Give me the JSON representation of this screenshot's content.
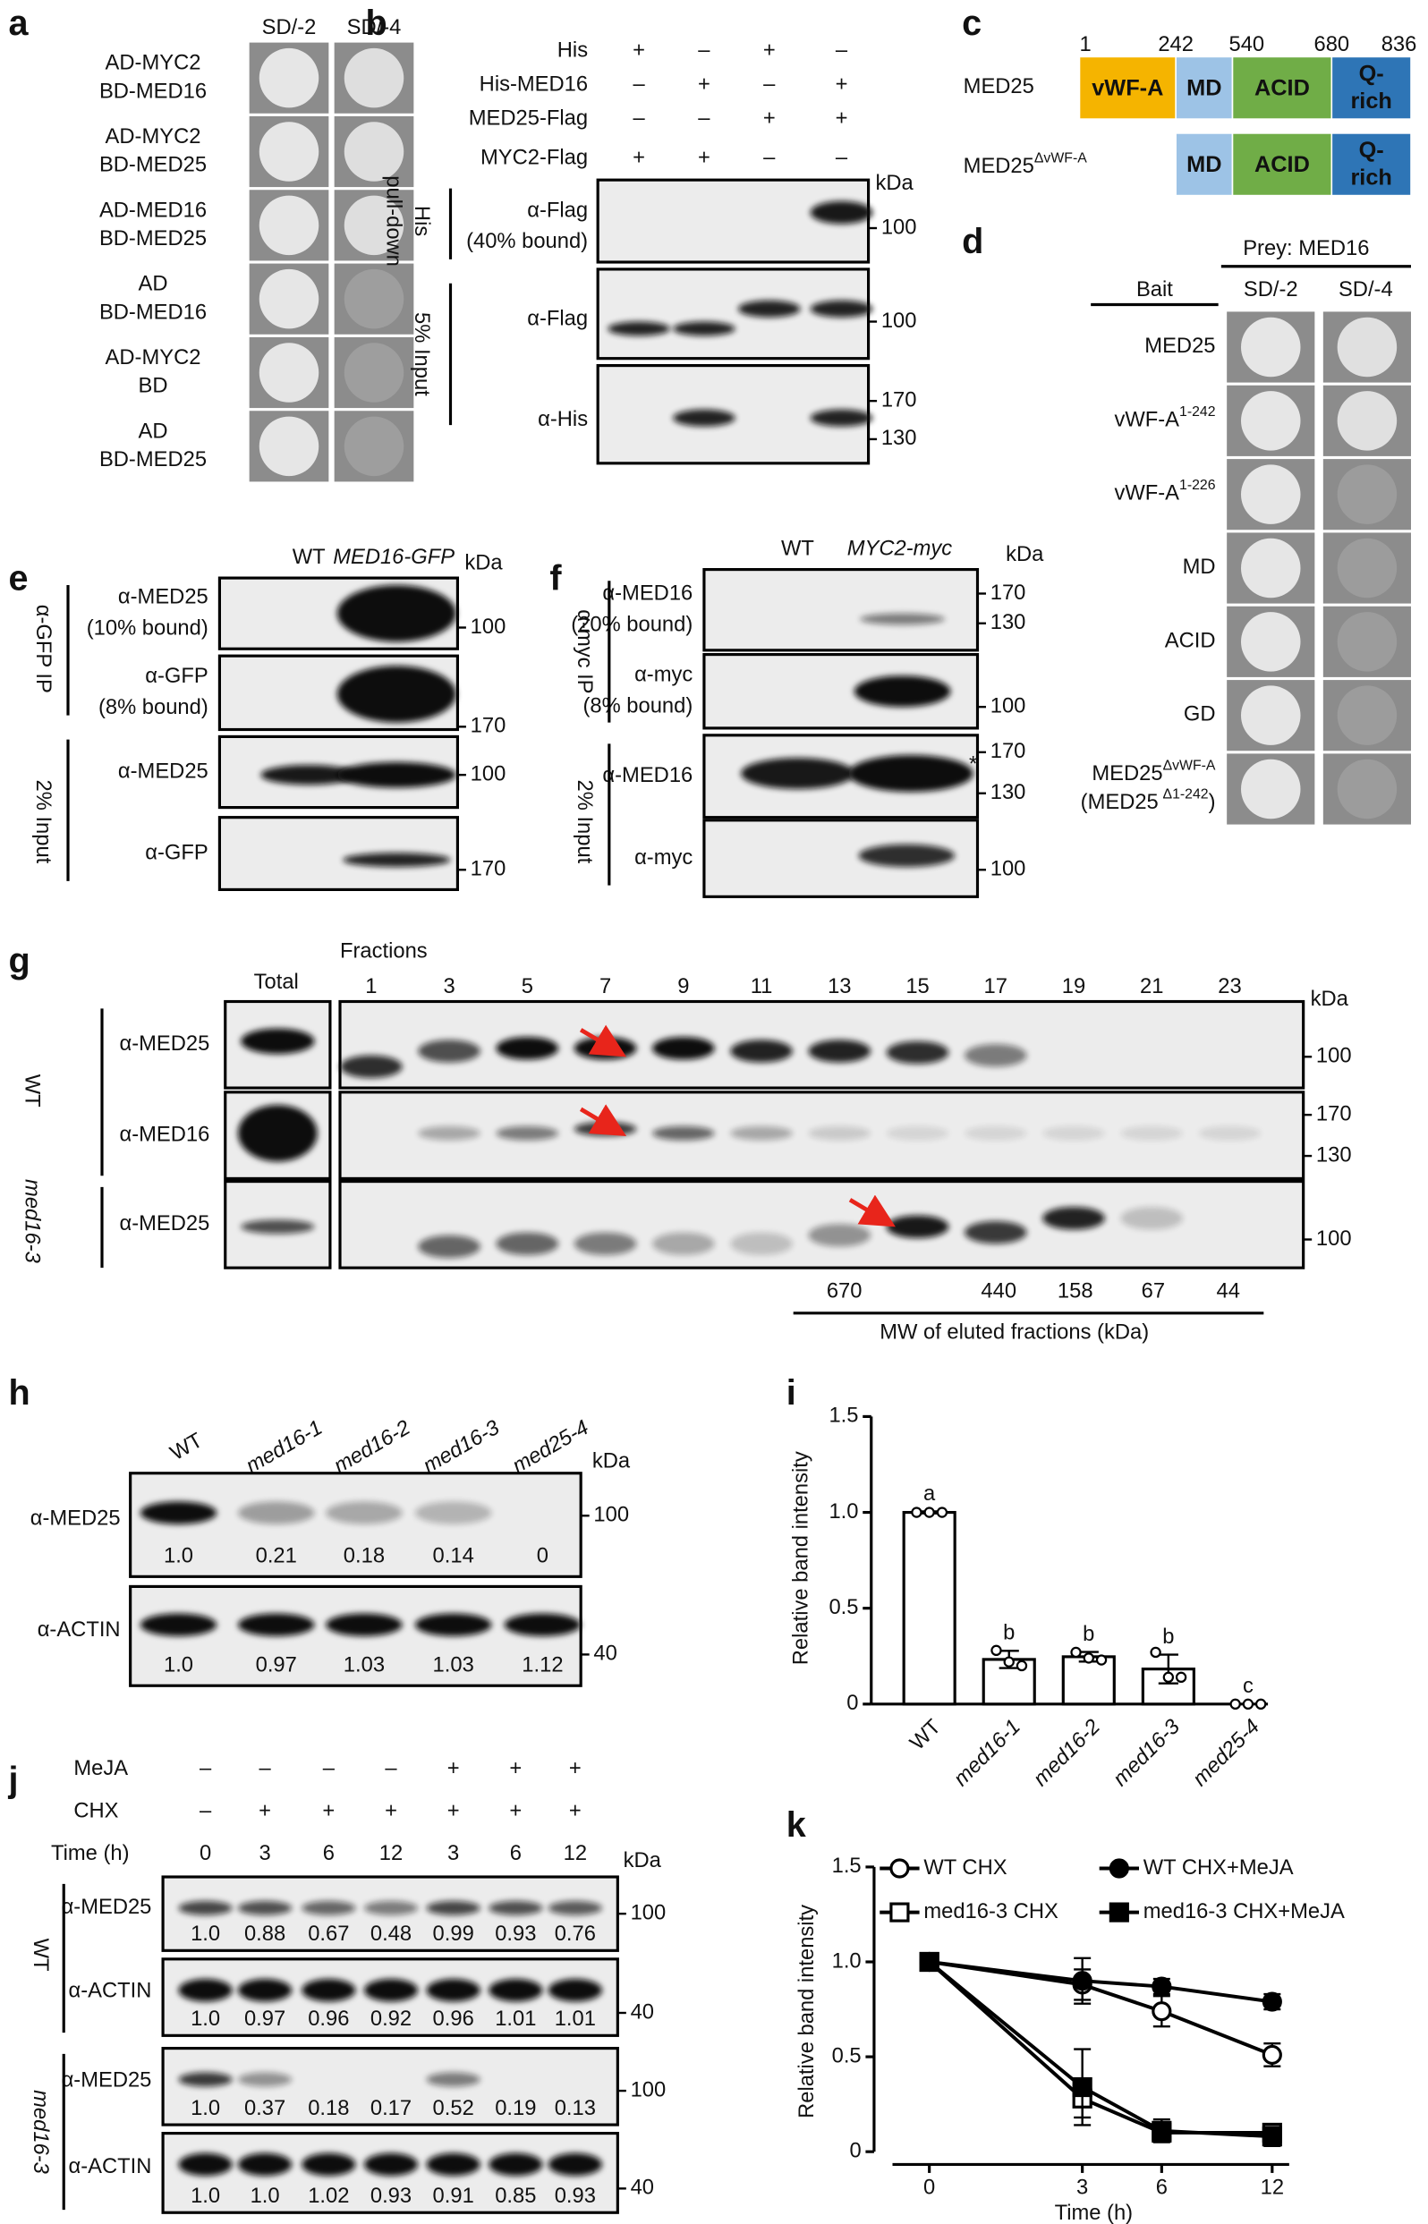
{
  "panels": {
    "a": {
      "label": "a",
      "columns": [
        "SD/-2",
        "SD/-4"
      ],
      "rows": [
        [
          "AD-MYC2",
          "BD-MED16"
        ],
        [
          "AD-MYC2",
          "BD-MED25"
        ],
        [
          "AD-MED16",
          "BD-MED25"
        ],
        [
          "AD",
          "BD-MED16"
        ],
        [
          "AD-MYC2",
          "BD"
        ],
        [
          "AD",
          "BD-MED25"
        ]
      ]
    },
    "b": {
      "label": "b",
      "conditions": [
        {
          "name": "His",
          "signs": [
            "+",
            "–",
            "+",
            "–"
          ]
        },
        {
          "name": "His-MED16",
          "signs": [
            "–",
            "+",
            "–",
            "+"
          ]
        },
        {
          "name": "MED25-Flag",
          "signs": [
            "–",
            "–",
            "+",
            "+"
          ]
        },
        {
          "name": "MYC2-Flag",
          "signs": [
            "+",
            "+",
            "–",
            "–"
          ]
        }
      ],
      "unit": "kDa",
      "groups": [
        [
          "His",
          "pull-down"
        ],
        [
          "5% Input"
        ]
      ],
      "blots": [
        {
          "label": [
            "α-Flag",
            "(40% bound)"
          ],
          "markers": [
            100
          ]
        },
        {
          "label": [
            "α-Flag"
          ],
          "markers": [
            100
          ]
        },
        {
          "label": [
            "α-His"
          ],
          "markers": [
            170,
            130
          ]
        }
      ]
    },
    "c": {
      "label": "c",
      "positions": [
        1,
        242,
        540,
        680,
        836
      ],
      "proteins": [
        {
          "name": "MED25"
        },
        {
          "name": "MED25",
          "sup": "ΔvWF-A"
        }
      ],
      "domains": [
        "vWF-A",
        "MD",
        "ACID",
        [
          "Q-",
          "rich"
        ]
      ]
    },
    "d": {
      "label": "d",
      "prey": "Prey: MED16",
      "bait": "Bait",
      "columns": [
        "SD/-2",
        "SD/-4"
      ],
      "rows": [
        {
          "name": "MED25"
        },
        {
          "name": "vWF-A",
          "sup": "1-242"
        },
        {
          "name": "vWF-A",
          "sup": "1-226"
        },
        {
          "name": "MD"
        },
        {
          "name": "ACID"
        },
        {
          "name": "GD"
        },
        {
          "lines": [
            {
              "name": "MED25",
              "sup": "ΔvWF-A"
            },
            {
              "name": "(MED25",
              "sup": "Δ1-242",
              "tail": ")"
            }
          ]
        }
      ]
    },
    "e": {
      "label": "e",
      "lanes": [
        "WT",
        "MED16-GFP"
      ],
      "unit": "kDa",
      "groups": [
        "α-GFP IP",
        "2% Input"
      ],
      "blots": [
        {
          "label": [
            "α-MED25",
            "(10% bound)"
          ],
          "markers": [
            100
          ]
        },
        {
          "label": [
            "α-GFP",
            "(8% bound)"
          ],
          "markers": [
            170
          ]
        },
        {
          "label": [
            "α-MED25"
          ],
          "markers": [
            100
          ]
        },
        {
          "label": [
            "α-GFP"
          ],
          "markers": [
            170
          ]
        }
      ]
    },
    "f": {
      "label": "f",
      "lanes": [
        "WT",
        "MYC2-myc"
      ],
      "unit": "kDa",
      "groups": [
        "α-myc IP",
        "2% Input"
      ],
      "note": "*",
      "blots": [
        {
          "label": [
            "α-MED16",
            "(20% bound)"
          ],
          "markers": [
            170,
            130
          ]
        },
        {
          "label": [
            "α-myc",
            "(8% bound)"
          ],
          "markers": [
            100
          ]
        },
        {
          "label": [
            "α-MED16"
          ],
          "markers": [
            170,
            130
          ]
        },
        {
          "label": [
            "α-myc"
          ],
          "markers": [
            100
          ]
        }
      ]
    },
    "g": {
      "label": "g",
      "total": "Total",
      "fractions_title": "Fractions",
      "fractions": [
        1,
        3,
        5,
        7,
        9,
        11,
        13,
        15,
        17,
        19,
        21,
        23
      ],
      "unit": "kDa",
      "genotypes": [
        "WT",
        "med16-3"
      ],
      "blots": [
        {
          "label": "α-MED25",
          "markers": [
            100
          ]
        },
        {
          "label": "α-MED16",
          "markers": [
            170,
            130
          ]
        },
        {
          "label": "α-MED25",
          "markers": [
            100
          ]
        }
      ],
      "mw": [
        670,
        440,
        158,
        67,
        44
      ],
      "mw_title": "MW of eluted fractions (kDa)"
    },
    "h": {
      "label": "h",
      "lanes": [
        "WT",
        "med16-1",
        "med16-2",
        "med16-3",
        "med25-4"
      ],
      "unit": "kDa",
      "blots": [
        {
          "label": "α-MED25",
          "markers": [
            100
          ],
          "quant": [
            "1.0",
            "0.21",
            "0.18",
            "0.14",
            "0"
          ]
        },
        {
          "label": "α-ACTIN",
          "markers": [
            40
          ],
          "quant": [
            "1.0",
            "0.97",
            "1.03",
            "1.03",
            "1.12"
          ]
        }
      ]
    },
    "j": {
      "label": "j",
      "treatments": [
        {
          "name": "MeJA",
          "signs": [
            "–",
            "–",
            "–",
            "–",
            "+",
            "+",
            "+"
          ]
        },
        {
          "name": "CHX",
          "signs": [
            "–",
            "+",
            "+",
            "+",
            "+",
            "+",
            "+"
          ]
        }
      ],
      "time_label": "Time (h)",
      "times": [
        0,
        3,
        6,
        12,
        3,
        6,
        12
      ],
      "unit": "kDa",
      "genotypes": [
        "WT",
        "med16-3"
      ],
      "blots": [
        {
          "label": "α-MED25",
          "markers": [
            100
          ],
          "quant": [
            "1.0",
            "0.88",
            "0.67",
            "0.48",
            "0.99",
            "0.93",
            "0.76"
          ]
        },
        {
          "label": "α-ACTIN",
          "markers": [
            40
          ],
          "quant": [
            "1.0",
            "0.97",
            "0.96",
            "0.92",
            "0.96",
            "1.01",
            "1.01"
          ]
        },
        {
          "label": "α-MED25",
          "markers": [
            100
          ],
          "quant": [
            "1.0",
            "0.37",
            "0.18",
            "0.17",
            "0.52",
            "0.19",
            "0.13"
          ]
        },
        {
          "label": "α-ACTIN",
          "markers": [
            40
          ],
          "quant": [
            "1.0",
            "1.0",
            "1.02",
            "0.93",
            "0.91",
            "0.85",
            "0.93"
          ]
        }
      ]
    }
  },
  "chart_data": [
    {
      "label": "i",
      "type": "bar",
      "ylabel": "Relative band intensity",
      "color": "#ffffff",
      "categories": [
        "WT",
        "med16-1",
        "med16-2",
        "med16-3",
        "med25-4"
      ],
      "values": [
        1.0,
        0.233,
        0.247,
        0.183,
        0
      ],
      "errors": [
        0.005,
        0.045,
        0.025,
        0.075,
        0
      ],
      "points": [
        [
          1,
          1,
          1
        ],
        [
          0.28,
          0.22,
          0.2
        ],
        [
          0.27,
          0.24,
          0.23
        ],
        [
          0.27,
          0.14,
          0.14
        ],
        [
          0,
          0,
          0
        ]
      ],
      "letters": [
        "a",
        "b",
        "b",
        "b",
        "c"
      ],
      "ylim": [
        0,
        1.5
      ],
      "yticks": [
        0,
        0.5,
        {
          "value": 1,
          "label": "1.0"
        },
        1.5
      ]
    },
    {
      "label": "k",
      "type": "line",
      "xlabel": "Time (h)",
      "ylabel": "Relative band intensity",
      "categories": [
        "0",
        "3",
        "6",
        "12"
      ],
      "series": [
        {
          "name": "WT CHX",
          "color": "#000000",
          "marker": "circle",
          "filled": false,
          "values": [
            1,
            0.88,
            0.74,
            0.51
          ],
          "errors": [
            0,
            0.08,
            0.08,
            0.06
          ]
        },
        {
          "name": "WT CHX+MeJA",
          "color": "#000000",
          "marker": "circle",
          "filled": true,
          "values": [
            1,
            0.9,
            0.87,
            0.79
          ],
          "errors": [
            0,
            0.12,
            0.04,
            0.04
          ]
        },
        {
          "name": "med16-3 CHX",
          "color": "#000000",
          "marker": "square",
          "filled": false,
          "values": [
            1,
            0.28,
            0.1,
            0.1
          ],
          "errors": [
            0,
            0.1,
            0.04,
            0.03
          ]
        },
        {
          "name": "med16-3 CHX+MeJA",
          "color": "#000000",
          "marker": "square",
          "filled": true,
          "values": [
            1,
            0.34,
            0.11,
            0.08
          ],
          "errors": [
            0,
            0.2,
            0.06,
            0.05
          ]
        }
      ],
      "ylim": [
        0,
        1.5
      ],
      "yticks": [
        0,
        0.5,
        {
          "value": 1,
          "label": "1.0"
        },
        1.5
      ]
    }
  ]
}
